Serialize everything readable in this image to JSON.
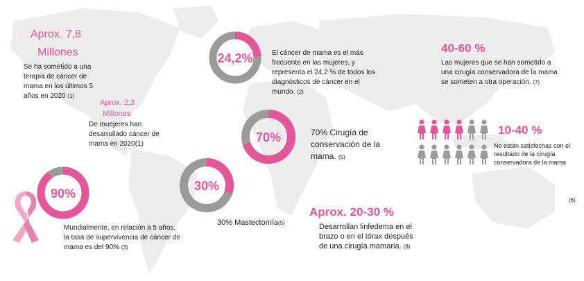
{
  "colors": {
    "accent": "#e5559a",
    "gray": "#9b9b9b",
    "map": "#ededed"
  },
  "stat_7_8": {
    "value": "Aprox. 7,8",
    "unit": "Millones",
    "text": "Se ha sometido a una terapia de cáncer de mama en los últimos 5 años en 2020",
    "ref": "(1)"
  },
  "stat_2_3": {
    "value": "Aprox. 2,3",
    "unit": "Millones",
    "text": "De muejeres  han desarrollado cáncer de mama en 2020",
    "ref": "(1)"
  },
  "ring_24": {
    "label": "24,2%",
    "fraction": 0.242,
    "text": "El cáncer de mama es el más frecuente en las mujeres, y representa el 24,2 % de todos los diagnósticos de cáncer en el mundo.",
    "ref": "(2)"
  },
  "ring_70": {
    "label": "70%",
    "fraction": 0.7,
    "text": "70% Cirugía de conservación de la mama.",
    "ref": "(5)"
  },
  "ring_30": {
    "label": "30%",
    "fraction": 0.3,
    "text": "30% Mastectomía",
    "ref": "(5)"
  },
  "ring_90": {
    "label": "90%",
    "fraction": 0.9,
    "text": "Mundialmente, en relación a 5 años, la tasa de supervivencia de cáncer de mama es del 90%",
    "ref": "(3)"
  },
  "stat_40_60": {
    "value": "40-60 %",
    "text": "Las mujeres que se han sometido a una cirugía conservadora de la mama se someten a otra operación.",
    "ref": "(7)"
  },
  "stat_10_40": {
    "value": "10-40 %",
    "text": "No están satisfechas con el resultado de la cirugía conservadora de la mama",
    "ref": "(6)"
  },
  "stat_20_30": {
    "value": "Aprox. 20-30 %",
    "text": "Desarrollan linfedema en el brazo o en el tórax después de una cirugía mamaria.",
    "ref": "(8)"
  },
  "icons": {
    "ribbon": "pink-ribbon-icon",
    "woman": "woman-icon"
  },
  "women_highlighted": {
    "pink": 4,
    "total": 12
  }
}
